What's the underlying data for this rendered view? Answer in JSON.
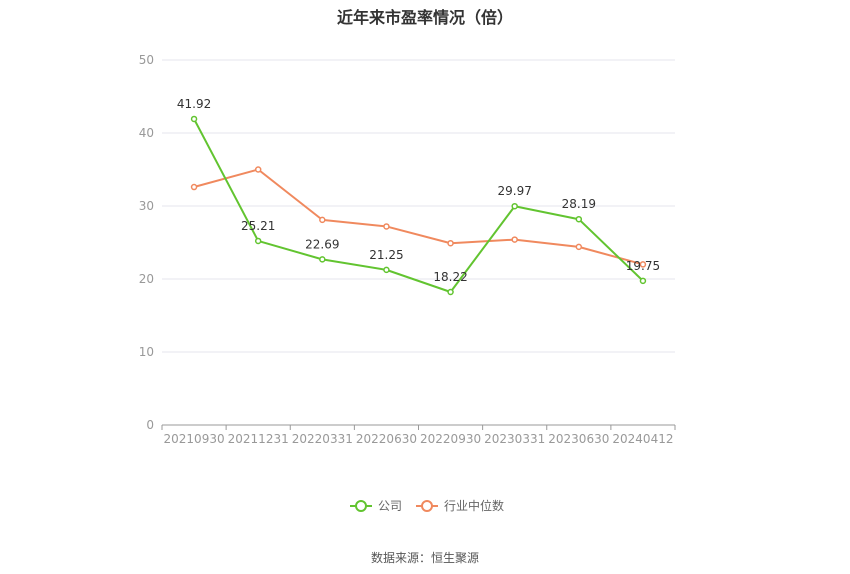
{
  "chart_data": {
    "type": "line",
    "title": "近年来市盈率情况（倍）",
    "categories": [
      "20210930",
      "20211231",
      "20220331",
      "20220630",
      "20220930",
      "20230331",
      "20230630",
      "20240412"
    ],
    "series": [
      {
        "name": "公司",
        "color": "#62c430",
        "values": [
          41.92,
          25.21,
          22.69,
          21.25,
          18.22,
          29.97,
          28.19,
          19.75
        ],
        "labels": [
          "41.92",
          "25.21",
          "22.69",
          "21.25",
          "18.22",
          "29.97",
          "28.19",
          "19.75"
        ]
      },
      {
        "name": "行业中位数",
        "color": "#f0895e",
        "values": [
          32.6,
          35.0,
          28.1,
          27.2,
          24.9,
          25.4,
          24.4,
          22.0
        ]
      }
    ],
    "ylim": [
      0,
      50
    ],
    "yticks": [
      "0",
      "10",
      "20",
      "30",
      "40",
      "50"
    ],
    "grid": true,
    "legend_position": "bottom-center"
  },
  "source_text": "数据来源：恒生聚源"
}
